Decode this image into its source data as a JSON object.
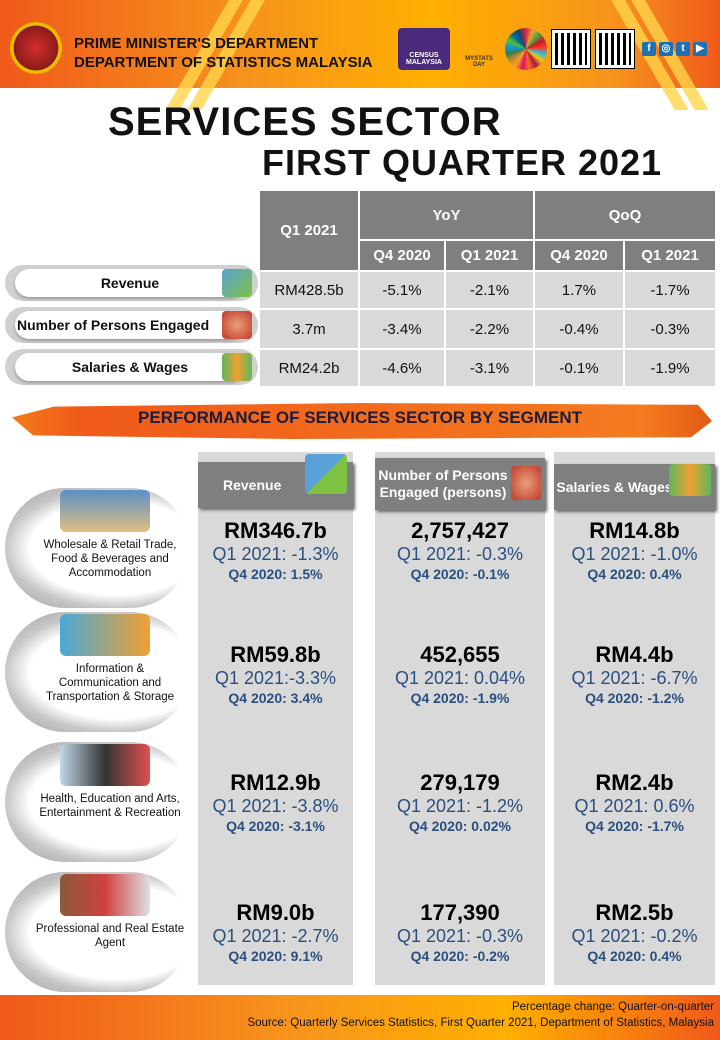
{
  "header": {
    "org_line1": "PRIME MINISTER'S DEPARTMENT",
    "org_line2": "DEPARTMENT OF STATISTICS MALAYSIA",
    "census_logo": "CENSUS MALAYSIA",
    "mystats_logo": "MYSTATS DAY"
  },
  "title": {
    "line1": "SERVICES SECTOR",
    "line2": "FIRST QUARTER 2021"
  },
  "summary": {
    "headers": {
      "q1": "Q1 2021",
      "yoy": "YoY",
      "qoq": "QoQ",
      "yoy_q4": "Q4 2020",
      "yoy_q1": "Q1 2021",
      "qoq_q4": "Q4 2020",
      "qoq_q1": "Q1 2021"
    },
    "rows": [
      {
        "label": "Revenue",
        "value": "RM428.5b",
        "yoy_q4": "-5.1%",
        "yoy_q1": "-2.1%",
        "qoq_q4": "1.7%",
        "qoq_q1": "-1.7%"
      },
      {
        "label": "Number of Persons Engaged",
        "value": "3.7m",
        "yoy_q4": "-3.4%",
        "yoy_q1": "-2.2%",
        "qoq_q4": "-0.4%",
        "qoq_q1": "-0.3%"
      },
      {
        "label": "Salaries & Wages",
        "value": "RM24.2b",
        "yoy_q4": "-4.6%",
        "yoy_q1": "-3.1%",
        "qoq_q4": "-0.1%",
        "qoq_q1": "-1.9%"
      }
    ]
  },
  "segment_section": {
    "title": "PERFORMANCE OF SERVICES SECTOR BY SEGMENT",
    "columns": [
      "Revenue",
      "Number of Persons Engaged (persons)",
      "Salaries & Wages"
    ],
    "segments": [
      {
        "name": "Wholesale & Retail Trade, Food & Beverages and Accommodation",
        "revenue": {
          "value": "RM346.7b",
          "q1": "Q1 2021: -1.3%",
          "q4": "Q4 2020: 1.5%"
        },
        "persons": {
          "value": "2,757,427",
          "q1": "Q1 2021: -0.3%",
          "q4": "Q4 2020: -0.1%"
        },
        "salaries": {
          "value": "RM14.8b",
          "q1": "Q1 2021: -1.0%",
          "q4": "Q4 2020: 0.4%"
        }
      },
      {
        "name": "Information & Communication and Transportation & Storage",
        "revenue": {
          "value": "RM59.8b",
          "q1": "Q1 2021:-3.3%",
          "q4": "Q4 2020: 3.4%"
        },
        "persons": {
          "value": "452,655",
          "q1": "Q1 2021: 0.04%",
          "q4": "Q4 2020: -1.9%"
        },
        "salaries": {
          "value": "RM4.4b",
          "q1": "Q1 2021: -6.7%",
          "q4": "Q4 2020: -1.2%"
        }
      },
      {
        "name": "Health, Education and Arts, Entertainment & Recreation",
        "revenue": {
          "value": "RM12.9b",
          "q1": "Q1 2021: -3.8%",
          "q4": "Q4 2020: -3.1%"
        },
        "persons": {
          "value": "279,179",
          "q1": "Q1 2021: -1.2%",
          "q4": "Q4 2020: 0.02%"
        },
        "salaries": {
          "value": "RM2.4b",
          "q1": "Q1 2021: 0.6%",
          "q4": "Q4 2020: -1.7%"
        }
      },
      {
        "name": "Professional and Real Estate Agent",
        "revenue": {
          "value": "RM9.0b",
          "q1": "Q1 2021: -2.7%",
          "q4": "Q4 2020: 9.1%"
        },
        "persons": {
          "value": "177,390",
          "q1": "Q1 2021: -0.3%",
          "q4": "Q4 2020: -0.2%"
        },
        "salaries": {
          "value": "RM2.5b",
          "q1": "Q1 2021: -0.2%",
          "q4": "Q4 2020: 0.4%"
        }
      }
    ]
  },
  "footer": {
    "note": "Percentage change: Quarter-on-quarter",
    "source": "Source: Quarterly Services Statistics,  First Quarter 2021, Department of Statistics,  Malaysia"
  }
}
